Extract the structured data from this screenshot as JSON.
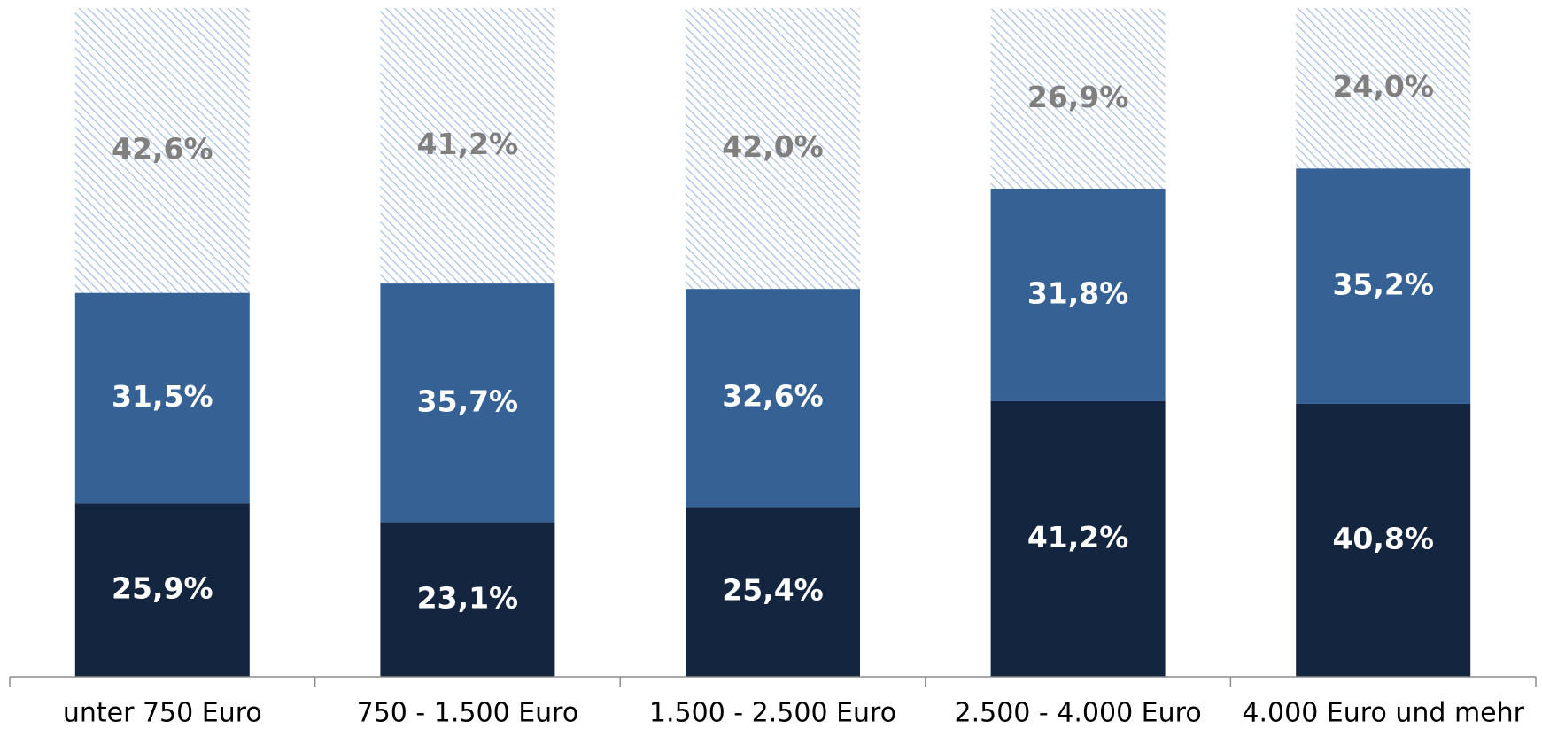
{
  "chart_data": {
    "type": "stacked_bar",
    "categories": [
      "unter 750 Euro",
      "750 - 1.500 Euro",
      "1.500 - 2.500 Euro",
      "2.500 - 4.000 Euro",
      "4.000 Euro und mehr"
    ],
    "series": [
      {
        "color": "#13253f",
        "label_color": "#ffffff",
        "values": [
          25.9,
          23.1,
          25.4,
          41.2,
          40.8
        ],
        "value_labels": [
          "25,9%",
          "23,1%",
          "25,4%",
          "41,2%",
          "40,8%"
        ]
      },
      {
        "color": "#366194",
        "label_color": "#ffffff",
        "values": [
          31.5,
          35.7,
          32.6,
          31.8,
          35.2
        ],
        "value_labels": [
          "31,5%",
          "35,7%",
          "32,6%",
          "31,8%",
          "35,2%"
        ]
      },
      {
        "color": "#a9bfdd",
        "hatch": true,
        "label_color": "#7f7f7f",
        "values": [
          42.6,
          41.2,
          42.0,
          26.9,
          24.0
        ],
        "value_labels": [
          "42,6%",
          "41,2%",
          "42,0%",
          "26,9%",
          "24,0%"
        ]
      }
    ],
    "ylim": [
      0,
      100
    ]
  }
}
